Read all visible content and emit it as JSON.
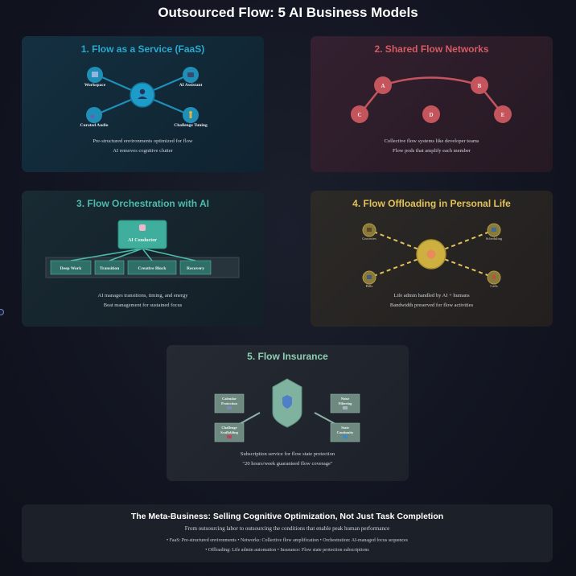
{
  "title": "Outsourced Flow: 5 AI Business Models",
  "cards": [
    {
      "title": "1. Flow as a Service (FaaS)",
      "color": "#29a9cf",
      "nodes": [
        {
          "label": "Workspace",
          "icon": "book-icon"
        },
        {
          "label": "AI Assistant",
          "icon": "robot-icon"
        },
        {
          "label": "Curated Audio",
          "icon": "music-icon"
        },
        {
          "label": "Challenge Tuning",
          "icon": "person-icon"
        }
      ],
      "center_icon": "user-icon",
      "desc": [
        "Pre-structured environments optimized for flow",
        "AI removes cognitive clutter"
      ]
    },
    {
      "title": "2. Shared Flow Networks",
      "color": "#d65b62",
      "nodes": [
        "A",
        "B",
        "C",
        "D",
        "E"
      ],
      "desc": [
        "Collective flow systems like developer teams",
        "Flow pods that amplify each member"
      ]
    },
    {
      "title": "3. Flow Orchestration with AI",
      "color": "#4cbcaa",
      "conductor": "AI Conductor",
      "conductor_icon": "brain-icon",
      "blocks": [
        "Deep Work",
        "Transition",
        "Creative Block",
        "Recovery"
      ],
      "desc": [
        "AI manages transitions, timing, and energy",
        "Beat management for sustained focus"
      ]
    },
    {
      "title": "4. Flow Offloading in Personal Life",
      "color": "#e2c25a",
      "center_icon": "relaxed-face-icon",
      "nodes": [
        {
          "label": "Groceries",
          "icon": "cart-icon"
        },
        {
          "label": "Scheduling",
          "icon": "calendar-icon"
        },
        {
          "label": "Bills",
          "icon": "bill-icon"
        },
        {
          "label": "Calls",
          "icon": "phone-icon"
        }
      ],
      "desc": [
        "Life admin handled by AI + humans",
        "Bandwidth preserved for flow activities"
      ]
    },
    {
      "title": "5. Flow Insurance",
      "color": "#8ecfb3",
      "center_icon": "shield-icon",
      "protections": [
        {
          "lines": [
            "Calendar",
            "Protection"
          ],
          "icon": "calendar-icon"
        },
        {
          "lines": [
            "Noise",
            "Filtering"
          ],
          "icon": "speaker-icon"
        },
        {
          "lines": [
            "Challenge",
            "Scaffolding"
          ],
          "icon": "ladder-icon"
        },
        {
          "lines": [
            "State",
            "Continuity"
          ],
          "icon": "loop-icon"
        }
      ],
      "desc": [
        "Subscription service for flow state protection",
        "\"20 hours/week guaranteed flow coverage\""
      ]
    }
  ],
  "meta": {
    "title": "The Meta-Business: Selling Cognitive Optimization, Not Just Task Completion",
    "subtitle": "From outsourcing labor to outsourcing the conditions that enable peak human performance",
    "bullets_line1": "• FaaS: Pre-structured environments • Networks: Collective flow amplification • Orchestration: AI-managed focus sequences",
    "bullets_line2": "• Offloading: Life admin automation • Insurance: Flow state protection subscriptions"
  }
}
